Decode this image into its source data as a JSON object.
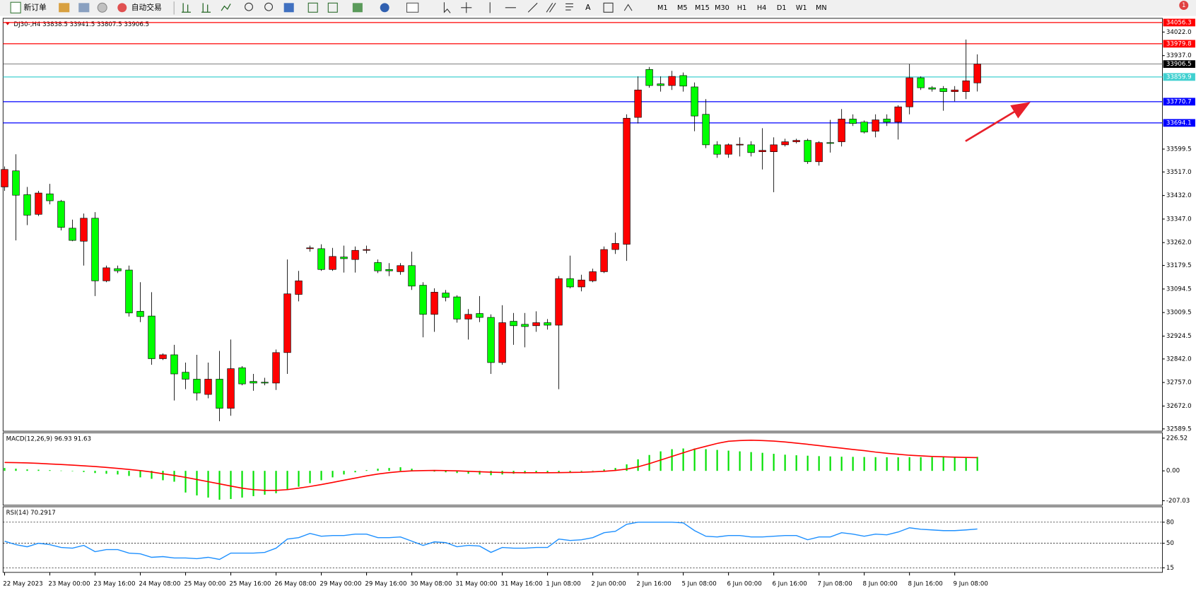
{
  "toolbar": {
    "new_order": "新订单",
    "auto_trading": "自动交易",
    "timeframes": [
      "M1",
      "M5",
      "M15",
      "M30",
      "H1",
      "H4",
      "D1",
      "W1",
      "MN"
    ],
    "badge": "1"
  },
  "chart_data": [
    {
      "type": "candlestick",
      "title": "DJ30-,H4  33838.5 33941.5 33807.5 33906.5",
      "categories": [
        "22 May 2023",
        null,
        null,
        null,
        "23 May 00:00",
        null,
        null,
        null,
        "23 May 16:00",
        null,
        null,
        null,
        "24 May 08:00",
        null,
        null,
        null,
        "25 May 00:00",
        null,
        null,
        null,
        "25 May 16:00",
        null,
        null,
        null,
        "26 May 08:00",
        null,
        null,
        null,
        "29 May 00:00",
        null,
        null,
        null,
        "29 May 16:00",
        null,
        null,
        null,
        "30 May 08:00",
        null,
        null,
        null,
        "31 May 00:00",
        null,
        null,
        null,
        "31 May 16:00",
        null,
        null,
        null,
        "1 Jun 08:00",
        null,
        null,
        null,
        "2 Jun 00:00",
        null,
        null,
        null,
        "2 Jun 16:00",
        null,
        null,
        null,
        "5 Jun 08:00",
        null,
        null,
        null,
        "6 Jun 00:00",
        null,
        null,
        null,
        "6 Jun 16:00",
        null,
        null,
        null,
        "7 Jun 08:00",
        null,
        null,
        null,
        "8 Jun 00:00",
        null,
        null,
        null,
        "8 Jun 16:00",
        null,
        null,
        null,
        "9 Jun 08:00",
        null,
        null
      ],
      "open": [
        33463,
        33521,
        33435,
        33364,
        33438,
        33411,
        33314,
        33267,
        33350,
        33124,
        33168,
        33163,
        33014,
        32997,
        32843,
        32857,
        32794,
        32769,
        32714,
        32769,
        32664,
        32810,
        32761,
        32758,
        32755,
        32865,
        33075,
        33240,
        33240,
        33165,
        33210,
        33201,
        33234,
        33190,
        33165,
        33157,
        33179,
        33108,
        33003,
        33080,
        33066,
        32986,
        33006,
        32992,
        32829,
        32978,
        32967,
        32962,
        32973,
        32964,
        33132,
        33102,
        33124,
        33157,
        33237,
        33256,
        33714,
        33887,
        33835,
        33829,
        33865,
        33824,
        33725,
        33615,
        33581,
        33615,
        33615,
        33590,
        33590,
        33615,
        33626,
        33631,
        33554,
        33623,
        33626,
        33708,
        33697,
        33664,
        33708,
        33697,
        33752,
        33857,
        33821,
        33818,
        33807,
        33807,
        33838.5
      ],
      "high": [
        33537,
        33581,
        33463,
        33449,
        33474,
        33416,
        33345,
        33367,
        33372,
        33179,
        33179,
        33179,
        33119,
        33083,
        32862,
        32893,
        32829,
        32857,
        32829,
        32871,
        32912,
        32816,
        32788,
        32774,
        32876,
        33201,
        33160,
        33251,
        33256,
        33243,
        33251,
        33248,
        33251,
        33201,
        33188,
        33188,
        33229,
        33119,
        33097,
        33091,
        33072,
        33022,
        33069,
        33003,
        33036,
        33008,
        33008,
        33014,
        32986,
        33141,
        33215,
        33146,
        33168,
        33248,
        33298,
        33725,
        33862,
        33896,
        33862,
        33882,
        33876,
        33840,
        33780,
        33628,
        33620,
        33642,
        33628,
        33675,
        33642,
        33637,
        33637,
        33637,
        33628,
        33705,
        33744,
        33725,
        33703,
        33725,
        33725,
        33758,
        33907,
        33862,
        33827,
        33827,
        33827,
        33995,
        33941.5
      ],
      "low": [
        33449,
        33270,
        33325,
        33358,
        33400,
        33306,
        33267,
        33179,
        33069,
        33119,
        33152,
        32995,
        32975,
        32821,
        32838,
        32692,
        32733,
        32692,
        32700,
        32617,
        32637,
        32747,
        32727,
        32747,
        32730,
        32788,
        33050,
        33229,
        33160,
        33160,
        33154,
        33154,
        33223,
        33152,
        33141,
        33146,
        33091,
        32920,
        32940,
        33050,
        32973,
        32912,
        32975,
        32788,
        32821,
        32893,
        32884,
        32940,
        32948,
        32733,
        33097,
        33086,
        33119,
        33152,
        33221,
        33196,
        33692,
        33821,
        33807,
        33813,
        33807,
        33664,
        33603,
        33568,
        33568,
        33573,
        33573,
        33526,
        33444,
        33609,
        33620,
        33546,
        33540,
        33587,
        33609,
        33683,
        33656,
        33642,
        33683,
        33634,
        33725,
        33813,
        33807,
        33738,
        33772,
        33780,
        33807.5
      ],
      "close": [
        33526,
        33433,
        33361,
        33441,
        33413,
        33317,
        33270,
        33350,
        33124,
        33171,
        33160,
        33008,
        32995,
        32843,
        32857,
        32788,
        32769,
        32719,
        32769,
        32664,
        32807,
        32752,
        32755,
        32755,
        32865,
        33077,
        33124,
        33243,
        33165,
        33212,
        33204,
        33234,
        33237,
        33160,
        33160,
        33179,
        33105,
        33003,
        33083,
        33064,
        32986,
        33003,
        32992,
        32829,
        32973,
        32962,
        32959,
        32973,
        32964,
        33132,
        33102,
        33127,
        33157,
        33237,
        33259,
        33711,
        33813,
        33829,
        33829,
        33862,
        33827,
        33719,
        33615,
        33581,
        33615,
        33617,
        33587,
        33595,
        33615,
        33626,
        33631,
        33554,
        33623,
        33620,
        33708,
        33692,
        33661,
        33705,
        33697,
        33752,
        33857,
        33821,
        33816,
        33807,
        33813,
        33846,
        33906.5
      ],
      "up_color": "#ff0000",
      "down_color": "#00ff00",
      "ylim": [
        32581.2,
        34071.6
      ],
      "yticks": [
        {
          "value": 34022,
          "label": "34022.0"
        },
        {
          "value": 33937,
          "label": "33937.0"
        },
        33599.5,
        {
          "value": 33517,
          "label": "33517.0"
        },
        {
          "value": 33432,
          "label": "33432.0"
        },
        {
          "value": 33347,
          "label": "33347.0"
        },
        {
          "value": 33262,
          "label": "33262.0"
        },
        33179.5,
        33094.5,
        33009.5,
        32924.5,
        {
          "value": 32842,
          "label": "32842.0"
        },
        {
          "value": 32757,
          "label": "32757.0"
        },
        {
          "value": 32672,
          "label": "32672.0"
        },
        32589.5
      ],
      "hlines": [
        {
          "value": 34056.3,
          "color": "#ff0000"
        },
        {
          "value": 33979.8,
          "color": "#ff0000"
        },
        {
          "value": 33859.9,
          "color": "#40d0d0"
        },
        {
          "value": 33770.7,
          "color": "#0000ff"
        },
        {
          "value": 33694.1,
          "color": "#0000ff"
        }
      ]
    },
    {
      "type": "macd",
      "title": "MACD(12,26,9) 96.93 91.63",
      "histogram": {
        "color": "#00e000",
        "values": [
          20,
          15,
          10,
          8,
          5,
          2,
          -2,
          -8,
          -15,
          -20,
          -25,
          -35,
          -45,
          -55,
          -65,
          -75,
          -150,
          -170,
          -185,
          -200,
          -195,
          -185,
          -175,
          -165,
          -155,
          -130,
          -110,
          -85,
          -65,
          -45,
          -25,
          -10,
          5,
          15,
          20,
          25,
          15,
          5,
          -5,
          -10,
          -15,
          -20,
          -25,
          -30,
          -25,
          -20,
          -18,
          -15,
          -12,
          -10,
          -8,
          -5,
          2,
          10,
          20,
          45,
          80,
          110,
          135,
          150,
          155,
          155,
          150,
          145,
          140,
          135,
          130,
          125,
          118,
          112,
          108,
          105,
          102,
          100,
          98,
          97,
          96,
          95,
          94,
          94,
          95,
          95,
          95,
          95,
          96,
          96,
          96.93
        ]
      },
      "signal": {
        "color": "#ff0000",
        "values": [
          58,
          57,
          55,
          52,
          48,
          44,
          40,
          35,
          30,
          24,
          17,
          10,
          2,
          -8,
          -20,
          -32,
          -45,
          -60,
          -75,
          -90,
          -105,
          -120,
          -130,
          -135,
          -135,
          -130,
          -120,
          -108,
          -95,
          -80,
          -65,
          -50,
          -35,
          -22,
          -12,
          -5,
          0,
          2,
          3,
          2,
          0,
          -3,
          -6,
          -9,
          -11,
          -12,
          -13,
          -13,
          -13,
          -12,
          -11,
          -10,
          -7,
          -3,
          3,
          12,
          28,
          50,
          75,
          100,
          125,
          150,
          170,
          190,
          205,
          210,
          212,
          210,
          206,
          200,
          192,
          184,
          175,
          166,
          157,
          148,
          140,
          130,
          122,
          115,
          108,
          104,
          100,
          97,
          95,
          93,
          91.63
        ]
      },
      "ylim": [
        -238,
        264
      ],
      "yticks": [
        226.52,
        {
          "value": 0,
          "label": "0.00"
        },
        -207.03
      ]
    },
    {
      "type": "line",
      "title": "RSI(14) 70.2917",
      "color": "#1e90ff",
      "values": [
        53,
        48,
        45,
        50,
        48,
        44,
        43,
        47,
        38,
        41,
        41,
        36,
        35,
        30,
        31,
        29,
        29,
        28,
        30,
        27,
        36,
        36,
        36,
        37,
        43,
        56,
        58,
        64,
        60,
        61,
        61,
        63,
        63,
        58,
        58,
        59,
        53,
        47,
        52,
        51,
        45,
        47,
        46,
        37,
        44,
        43,
        43,
        44,
        44,
        56,
        54,
        55,
        58,
        65,
        67,
        77,
        80,
        80,
        80,
        80,
        79,
        68,
        60,
        59,
        61,
        61,
        59,
        59,
        60,
        61,
        61,
        55,
        59,
        59,
        65,
        63,
        60,
        63,
        62,
        66,
        72,
        70,
        69,
        68,
        68,
        69,
        70.2917
      ],
      "ylim": [
        8.5,
        102
      ],
      "yticks": [
        80,
        50,
        15
      ],
      "grid": "dashed"
    }
  ]
}
